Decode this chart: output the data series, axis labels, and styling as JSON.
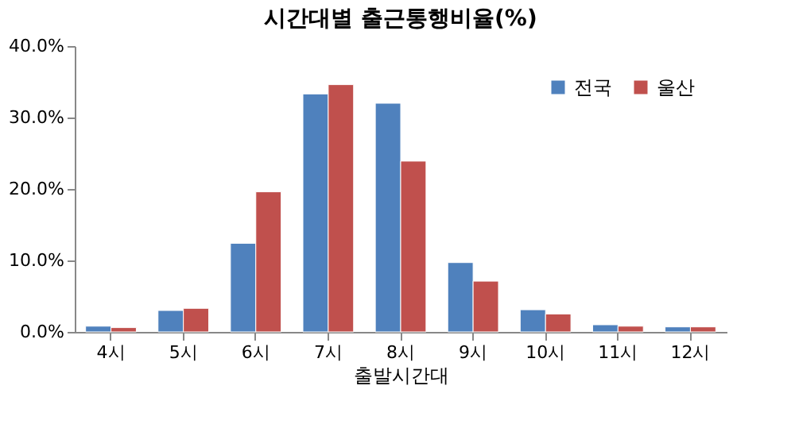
{
  "chart_data": {
    "type": "bar",
    "title": "시간대별 출근통행비율(%)",
    "xlabel": "출발시간대",
    "categories": [
      "4시",
      "5시",
      "6시",
      "7시",
      "8시",
      "9시",
      "10시",
      "11시",
      "12시"
    ],
    "series": [
      {
        "name": "전국",
        "color": "#4f81bd",
        "values": [
          0.8,
          3.0,
          12.4,
          33.3,
          32.0,
          9.7,
          3.1,
          1.0,
          0.7
        ]
      },
      {
        "name": "울산",
        "color": "#c0504d",
        "values": [
          0.6,
          3.3,
          19.6,
          34.6,
          23.9,
          7.1,
          2.5,
          0.8,
          0.7
        ]
      }
    ],
    "ylim": [
      0,
      40
    ],
    "yticks": [
      {
        "value": 0,
        "label": "0.0%"
      },
      {
        "value": 10,
        "label": "10.0%"
      },
      {
        "value": 20,
        "label": "20.0%"
      },
      {
        "value": 30,
        "label": "30.0%"
      },
      {
        "value": 40,
        "label": "40.0%"
      }
    ],
    "grid": false,
    "legend": "top right"
  }
}
